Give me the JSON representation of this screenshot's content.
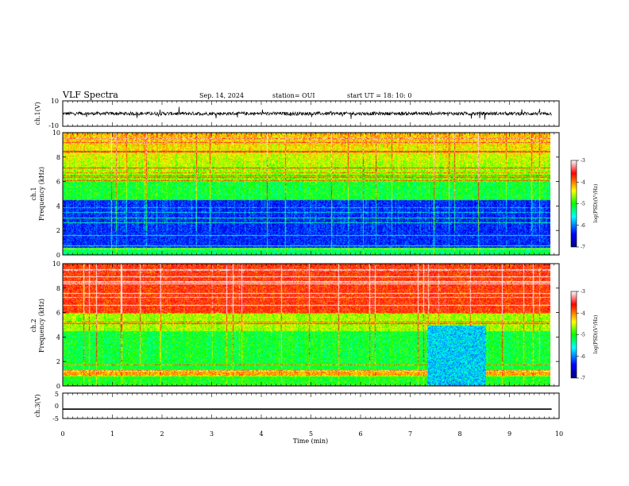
{
  "header": {
    "title": "VLF Spectra",
    "date": "Sep. 14, 2024",
    "station": "station= OUI",
    "start": "start  UT  =   18: 10: 0"
  },
  "colors": {
    "trace": "#000000",
    "colormap": [
      "#00007f",
      "#0000ff",
      "#00ffff",
      "#00ff00",
      "#ffff00",
      "#ff0000",
      "#ffffff"
    ]
  },
  "chart_data": [
    {
      "type": "line",
      "ylabel": "ch.1(V)",
      "ylim": [
        -10,
        10
      ],
      "yticks": [
        "10",
        "-10"
      ],
      "xlim": [
        0,
        10
      ],
      "description_of_series": "noisy waveform centred near 0 V, range about -3 to 3 V",
      "baseline": 0,
      "amplitude": 3
    },
    {
      "type": "heatmap",
      "ylabel": "ch.1\nFrequency (kHz)",
      "ylabel_line1": "ch.1",
      "ylabel_line2": "Frequency (kHz)",
      "ylim": [
        0,
        10
      ],
      "yticks": [
        "0",
        "2",
        "4",
        "6",
        "8",
        "10"
      ],
      "xlim": [
        0,
        9.85
      ],
      "colorbar": {
        "label": "log(PSD)(V²/Hz)",
        "range": [
          -7,
          -3
        ],
        "ticks": [
          "-3",
          "-4",
          "-5",
          "-6",
          "-7"
        ]
      }
    },
    {
      "type": "heatmap",
      "ylabel_line1": "ch.2",
      "ylabel_line2": "Frequency (kHz)",
      "ylim": [
        0,
        10
      ],
      "yticks": [
        "0",
        "2",
        "4",
        "6",
        "8",
        "10"
      ],
      "xlim": [
        0,
        9.85
      ],
      "colorbar": {
        "label": "log(PSD)(V²/Hz)",
        "range": [
          -7,
          -3
        ],
        "ticks": [
          "-3",
          "-4",
          "-5",
          "-6",
          "-7"
        ]
      },
      "low_power_patch_min": [
        7.35,
        8.55
      ]
    },
    {
      "type": "line",
      "ylabel": "ch.3(V)",
      "ylim": [
        -5,
        5
      ],
      "yticks": [
        "5",
        "0",
        "-5"
      ],
      "xlim": [
        0,
        10
      ],
      "constant_value": -1.3
    }
  ],
  "xaxis": {
    "label": "Time (min)",
    "ticks": [
      "0",
      "1",
      "2",
      "3",
      "4",
      "5",
      "6",
      "7",
      "8",
      "9",
      "10"
    ],
    "range": [
      0,
      10
    ]
  }
}
